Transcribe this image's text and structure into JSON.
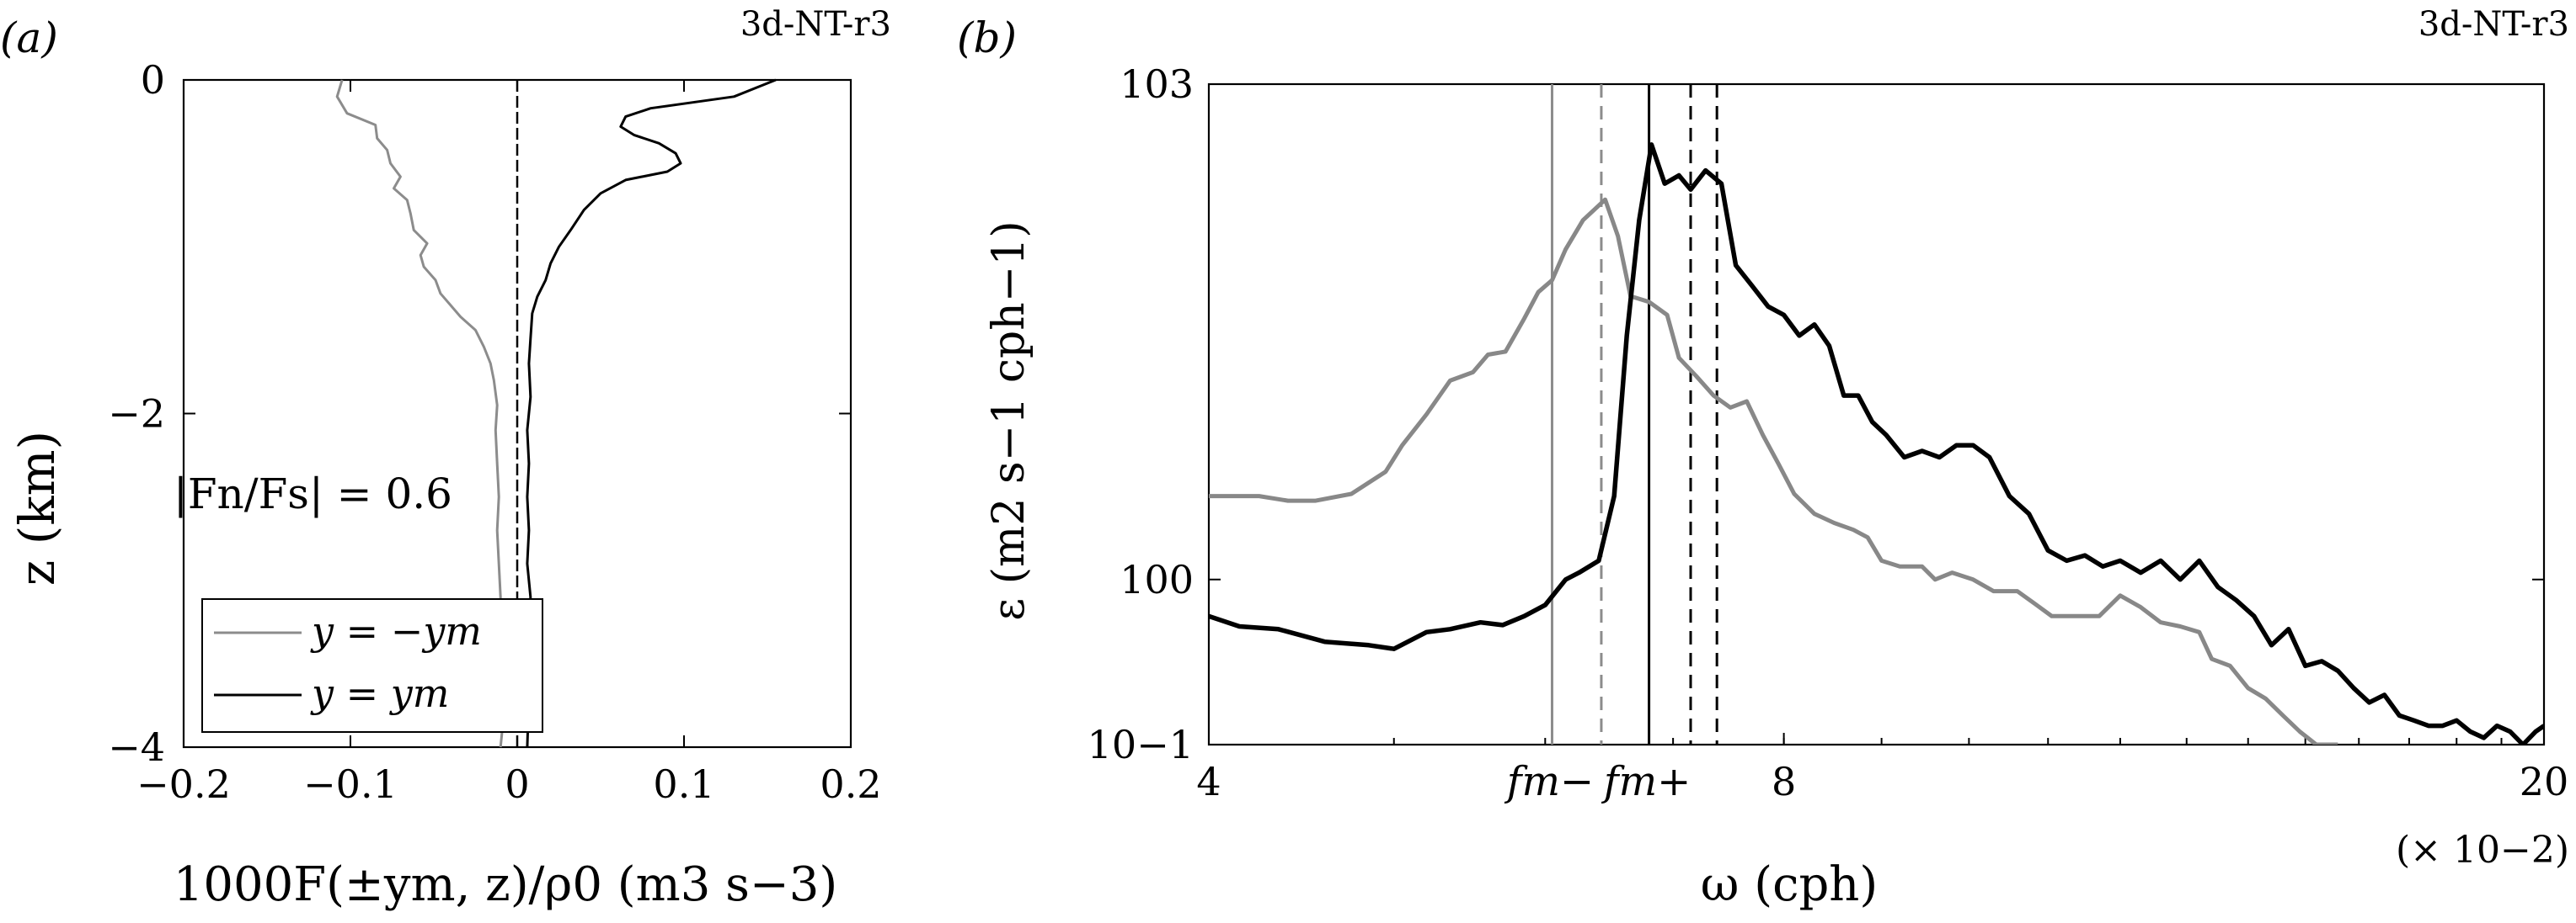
{
  "chart_data": [
    {
      "type": "line",
      "panel_label": "(a)",
      "run_label": "3d-NT-r3",
      "ylabel": "z (km)",
      "xlabel": "1000F(±ym, z)/ρ0 (m3 s−3)",
      "xlim": [
        -0.2,
        0.2
      ],
      "ylim": [
        -4,
        0
      ],
      "x_ticks": [
        "−0.2",
        "−0.1",
        "0",
        "0.1",
        "0.2"
      ],
      "y_ticks": [
        "0",
        "−2",
        "−4"
      ],
      "x_tick_values": [
        -0.2,
        -0.1,
        0,
        0.1,
        0.2
      ],
      "y_tick_values": [
        0,
        -2,
        -4
      ],
      "annotation": "|Fn/Fs| = 0.6",
      "legend": [
        "y = −ym",
        "y = ym"
      ],
      "legend_position": "bottom-left",
      "grid": false,
      "zero_line": "dashed",
      "series": [
        {
          "name": "y = −ym",
          "color": "#8c8c8c",
          "points": [
            [
              -0.105,
              0.0
            ],
            [
              -0.108,
              -0.1
            ],
            [
              -0.102,
              -0.2
            ],
            [
              -0.085,
              -0.27
            ],
            [
              -0.084,
              -0.35
            ],
            [
              -0.078,
              -0.42
            ],
            [
              -0.076,
              -0.5
            ],
            [
              -0.07,
              -0.58
            ],
            [
              -0.074,
              -0.65
            ],
            [
              -0.066,
              -0.72
            ],
            [
              -0.064,
              -0.8
            ],
            [
              -0.062,
              -0.9
            ],
            [
              -0.054,
              -0.98
            ],
            [
              -0.058,
              -1.05
            ],
            [
              -0.056,
              -1.12
            ],
            [
              -0.049,
              -1.2
            ],
            [
              -0.046,
              -1.28
            ],
            [
              -0.04,
              -1.35
            ],
            [
              -0.034,
              -1.42
            ],
            [
              -0.025,
              -1.5
            ],
            [
              -0.02,
              -1.6
            ],
            [
              -0.016,
              -1.7
            ],
            [
              -0.014,
              -1.8
            ],
            [
              -0.012,
              -1.95
            ],
            [
              -0.013,
              -2.1
            ],
            [
              -0.012,
              -2.3
            ],
            [
              -0.011,
              -2.5
            ],
            [
              -0.012,
              -2.7
            ],
            [
              -0.011,
              -2.9
            ],
            [
              -0.01,
              -3.1
            ],
            [
              -0.01,
              -3.3
            ],
            [
              -0.009,
              -3.5
            ],
            [
              -0.01,
              -3.7
            ],
            [
              -0.009,
              -3.9
            ],
            [
              -0.01,
              -4.0
            ]
          ]
        },
        {
          "name": "y = ym",
          "color": "#000000",
          "points": [
            [
              0.155,
              0.0
            ],
            [
              0.13,
              -0.1
            ],
            [
              0.08,
              -0.17
            ],
            [
              0.065,
              -0.22
            ],
            [
              0.062,
              -0.28
            ],
            [
              0.07,
              -0.33
            ],
            [
              0.085,
              -0.38
            ],
            [
              0.095,
              -0.44
            ],
            [
              0.098,
              -0.5
            ],
            [
              0.09,
              -0.55
            ],
            [
              0.065,
              -0.6
            ],
            [
              0.05,
              -0.68
            ],
            [
              0.04,
              -0.78
            ],
            [
              0.032,
              -0.9
            ],
            [
              0.025,
              -1.0
            ],
            [
              0.02,
              -1.1
            ],
            [
              0.017,
              -1.2
            ],
            [
              0.012,
              -1.3
            ],
            [
              0.009,
              -1.4
            ],
            [
              0.008,
              -1.55
            ],
            [
              0.007,
              -1.7
            ],
            [
              0.008,
              -1.9
            ],
            [
              0.006,
              -2.1
            ],
            [
              0.007,
              -2.3
            ],
            [
              0.006,
              -2.5
            ],
            [
              0.007,
              -2.7
            ],
            [
              0.006,
              -2.9
            ],
            [
              0.008,
              -3.1
            ],
            [
              0.007,
              -3.3
            ],
            [
              0.006,
              -3.5
            ],
            [
              0.007,
              -3.7
            ],
            [
              0.006,
              -4.0
            ]
          ]
        }
      ]
    },
    {
      "type": "line",
      "panel_label": "(b)",
      "run_label": "3d-NT-r3",
      "ylabel": "ε (m2 s−1 cph−1)",
      "xlabel": "ω (cph)",
      "x_multiplier": "(× 10−2)",
      "x_scale": "log",
      "y_scale": "log",
      "xlim": [
        4,
        20
      ],
      "ylim": [
        0.1,
        1000
      ],
      "x_ticks": [
        "4",
        "8",
        "20"
      ],
      "x_tick_values": [
        4,
        8,
        20
      ],
      "y_ticks": [
        "10−1",
        "100",
        "103"
      ],
      "y_tick_values": [
        0.1,
        1,
        1000
      ],
      "grid": false,
      "vlines": [
        {
          "x": 6.05,
          "style": "solid",
          "color": "#8c8c8c",
          "label": "fm−"
        },
        {
          "x": 6.42,
          "style": "dashed",
          "color": "#8c8c8c",
          "label": ""
        },
        {
          "x": 6.8,
          "style": "solid",
          "color": "#000000",
          "label": "fm+"
        },
        {
          "x": 7.15,
          "style": "dashed",
          "color": "#000000",
          "label": ""
        },
        {
          "x": 7.38,
          "style": "dashed",
          "color": "#000000",
          "label": ""
        }
      ],
      "series": [
        {
          "name": "",
          "color": "#888888",
          "points": [
            [
              4.0,
              3.2
            ],
            [
              4.25,
              3.2
            ],
            [
              4.4,
              3.0
            ],
            [
              4.55,
              3.0
            ],
            [
              4.75,
              3.3
            ],
            [
              4.95,
              4.5
            ],
            [
              5.05,
              6.5
            ],
            [
              5.2,
              10
            ],
            [
              5.35,
              16
            ],
            [
              5.5,
              18
            ],
            [
              5.6,
              23
            ],
            [
              5.72,
              24
            ],
            [
              5.85,
              38
            ],
            [
              5.95,
              55
            ],
            [
              6.05,
              65
            ],
            [
              6.15,
              100
            ],
            [
              6.28,
              150
            ],
            [
              6.45,
              200
            ],
            [
              6.55,
              120
            ],
            [
              6.65,
              52
            ],
            [
              6.8,
              48
            ],
            [
              6.95,
              40
            ],
            [
              7.05,
              22
            ],
            [
              7.2,
              17
            ],
            [
              7.35,
              13
            ],
            [
              7.5,
              11
            ],
            [
              7.65,
              12
            ],
            [
              7.8,
              7.5
            ],
            [
              7.95,
              5
            ],
            [
              8.1,
              3.3
            ],
            [
              8.3,
              2.5
            ],
            [
              8.5,
              2.2
            ],
            [
              8.7,
              2.0
            ],
            [
              8.85,
              1.8
            ],
            [
              9.0,
              1.3
            ],
            [
              9.2,
              1.2
            ],
            [
              9.45,
              1.2
            ],
            [
              9.6,
              1.0
            ],
            [
              9.8,
              1.1
            ],
            [
              10.05,
              1.0
            ],
            [
              10.3,
              0.85
            ],
            [
              10.6,
              0.85
            ],
            [
              10.85,
              0.7
            ],
            [
              11.05,
              0.6
            ],
            [
              11.4,
              0.6
            ],
            [
              11.7,
              0.6
            ],
            [
              12.0,
              0.8
            ],
            [
              12.3,
              0.68
            ],
            [
              12.6,
              0.55
            ],
            [
              12.9,
              0.52
            ],
            [
              13.2,
              0.48
            ],
            [
              13.4,
              0.33
            ],
            [
              13.7,
              0.3
            ],
            [
              14.0,
              0.22
            ],
            [
              14.3,
              0.19
            ],
            [
              14.6,
              0.15
            ],
            [
              14.9,
              0.12
            ],
            [
              15.2,
              0.1
            ],
            [
              15.6,
              0.1
            ]
          ]
        },
        {
          "name": "",
          "color": "#000000",
          "points": [
            [
              4.0,
              0.6
            ],
            [
              4.15,
              0.52
            ],
            [
              4.35,
              0.5
            ],
            [
              4.6,
              0.42
            ],
            [
              4.85,
              0.4
            ],
            [
              5.0,
              0.38
            ],
            [
              5.2,
              0.48
            ],
            [
              5.35,
              0.5
            ],
            [
              5.55,
              0.55
            ],
            [
              5.7,
              0.53
            ],
            [
              5.85,
              0.6
            ],
            [
              6.0,
              0.7
            ],
            [
              6.15,
              1.0
            ],
            [
              6.25,
              1.1
            ],
            [
              6.4,
              1.3
            ],
            [
              6.52,
              3.2
            ],
            [
              6.62,
              30
            ],
            [
              6.72,
              150
            ],
            [
              6.82,
              430
            ],
            [
              6.93,
              250
            ],
            [
              7.05,
              280
            ],
            [
              7.15,
              230
            ],
            [
              7.28,
              300
            ],
            [
              7.42,
              250
            ],
            [
              7.55,
              80
            ],
            [
              7.7,
              60
            ],
            [
              7.85,
              45
            ],
            [
              8.0,
              40
            ],
            [
              8.15,
              30
            ],
            [
              8.3,
              35
            ],
            [
              8.45,
              26
            ],
            [
              8.6,
              13
            ],
            [
              8.75,
              13
            ],
            [
              8.9,
              9
            ],
            [
              9.05,
              7.5
            ],
            [
              9.25,
              5.5
            ],
            [
              9.45,
              6
            ],
            [
              9.65,
              5.5
            ],
            [
              9.85,
              6.5
            ],
            [
              10.05,
              6.5
            ],
            [
              10.25,
              5.5
            ],
            [
              10.5,
              3.2
            ],
            [
              10.75,
              2.5
            ],
            [
              11.0,
              1.5
            ],
            [
              11.25,
              1.3
            ],
            [
              11.5,
              1.4
            ],
            [
              11.75,
              1.2
            ],
            [
              12.0,
              1.3
            ],
            [
              12.3,
              1.1
            ],
            [
              12.6,
              1.3
            ],
            [
              12.9,
              1.0
            ],
            [
              13.2,
              1.3
            ],
            [
              13.5,
              0.9
            ],
            [
              13.8,
              0.75
            ],
            [
              14.1,
              0.6
            ],
            [
              14.4,
              0.4
            ],
            [
              14.7,
              0.5
            ],
            [
              15.0,
              0.3
            ],
            [
              15.3,
              0.32
            ],
            [
              15.6,
              0.28
            ],
            [
              15.9,
              0.22
            ],
            [
              16.2,
              0.18
            ],
            [
              16.5,
              0.2
            ],
            [
              16.8,
              0.15
            ],
            [
              17.1,
              0.14
            ],
            [
              17.4,
              0.13
            ],
            [
              17.7,
              0.13
            ],
            [
              18.0,
              0.14
            ],
            [
              18.3,
              0.12
            ],
            [
              18.6,
              0.11
            ],
            [
              18.9,
              0.13
            ],
            [
              19.2,
              0.12
            ],
            [
              19.5,
              0.1
            ],
            [
              19.8,
              0.12
            ],
            [
              20.0,
              0.13
            ]
          ]
        }
      ]
    }
  ]
}
